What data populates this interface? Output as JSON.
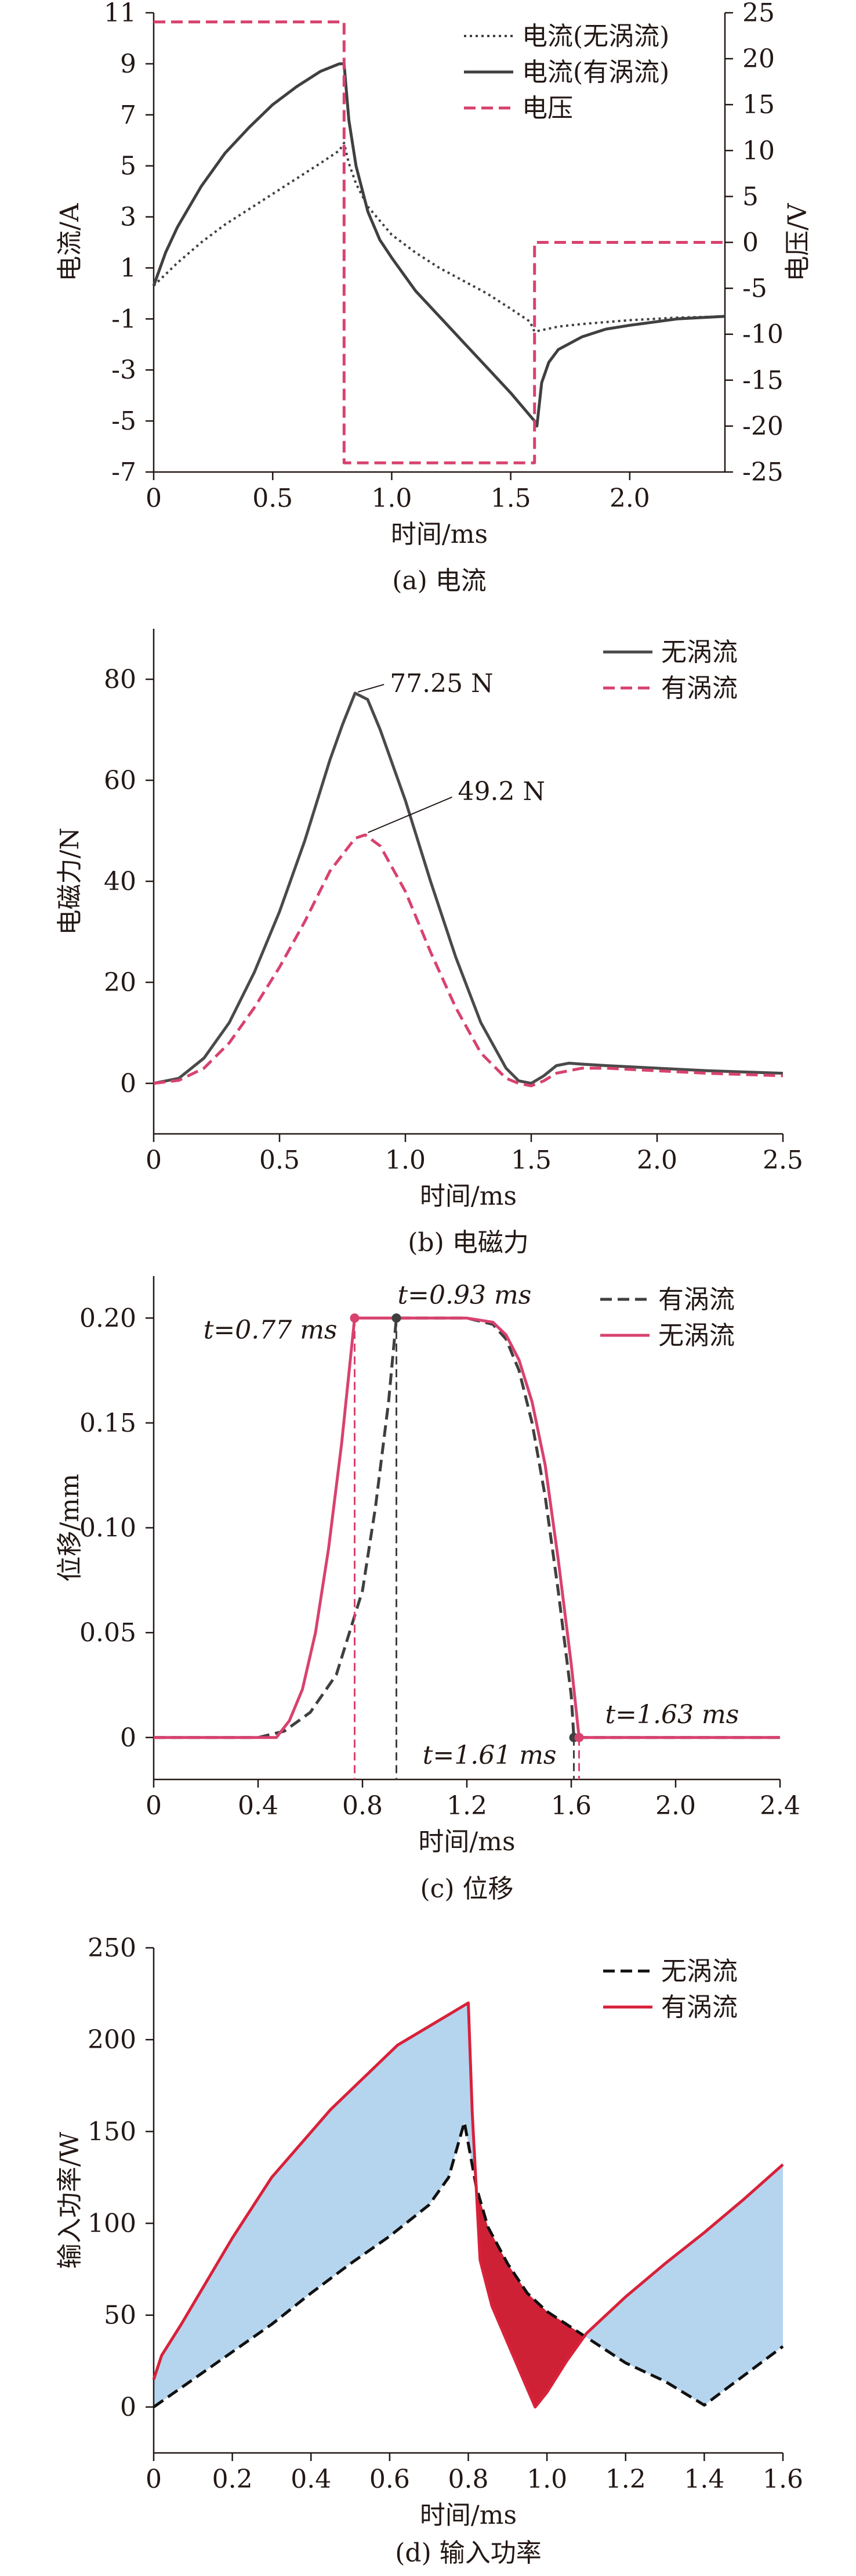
{
  "chart_data": [
    {
      "type": "line",
      "caption": "(a) 电流",
      "xlabel": "时间/ms",
      "ylabel": "电流/A",
      "y2label": "电压/V",
      "xlim": [
        0,
        2.4
      ],
      "ylim": [
        -7,
        11
      ],
      "y2lim": [
        -25,
        25
      ],
      "xticks": [
        0,
        0.5,
        1.0,
        1.5,
        2.0
      ],
      "xtick_labels": [
        "0",
        "0.5",
        "1.0",
        "1.5",
        "2.0"
      ],
      "yticks": [
        11,
        9,
        7,
        5,
        3,
        1,
        -1,
        -3,
        -5,
        -7
      ],
      "y2ticks": [
        25,
        20,
        15,
        10,
        5,
        0,
        -5,
        -10,
        -15,
        -20,
        -25
      ],
      "legend_position": "top-right",
      "series": [
        {
          "name": "电流(无涡流)",
          "axis": "left",
          "color": "#3f3f3f",
          "style": "dotted",
          "x": [
            0,
            0.1,
            0.2,
            0.3,
            0.4,
            0.5,
            0.6,
            0.7,
            0.78,
            0.8,
            0.82,
            0.85,
            0.9,
            1.0,
            1.1,
            1.2,
            1.3,
            1.4,
            1.5,
            1.58,
            1.6,
            1.65,
            1.7,
            1.8,
            2.0,
            2.2,
            2.4
          ],
          "y": [
            0.3,
            1.2,
            2.0,
            2.7,
            3.3,
            3.9,
            4.5,
            5.1,
            5.6,
            5.9,
            5.1,
            4.3,
            3.4,
            2.3,
            1.6,
            1.0,
            0.5,
            0.0,
            -0.6,
            -1.1,
            -1.5,
            -1.4,
            -1.3,
            -1.2,
            -1.05,
            -0.95,
            -0.9
          ]
        },
        {
          "name": "电流(有涡流)",
          "axis": "left",
          "color": "#404040",
          "style": "solid",
          "x": [
            0,
            0.05,
            0.1,
            0.2,
            0.3,
            0.4,
            0.5,
            0.6,
            0.7,
            0.78,
            0.8,
            0.82,
            0.85,
            0.9,
            0.95,
            1.0,
            1.1,
            1.2,
            1.3,
            1.4,
            1.5,
            1.6,
            1.61,
            1.63,
            1.66,
            1.7,
            1.8,
            1.9,
            2.0,
            2.2,
            2.4
          ],
          "y": [
            0.3,
            1.6,
            2.6,
            4.2,
            5.5,
            6.5,
            7.4,
            8.1,
            8.7,
            9.0,
            9.0,
            6.8,
            5.0,
            3.2,
            2.1,
            1.4,
            0.1,
            -0.9,
            -1.9,
            -2.9,
            -3.9,
            -5.0,
            -5.2,
            -3.5,
            -2.7,
            -2.2,
            -1.7,
            -1.4,
            -1.25,
            -1.0,
            -0.9
          ]
        },
        {
          "name": "电压",
          "axis": "right",
          "color": "#d8426e",
          "style": "dashed",
          "x": [
            0,
            0.8,
            0.8,
            1.6,
            1.6,
            2.4
          ],
          "y": [
            24,
            24,
            -24,
            -24,
            0,
            0
          ]
        }
      ]
    },
    {
      "type": "line",
      "caption": "(b) 电磁力",
      "xlabel": "时间/ms",
      "ylabel": "电磁力/N",
      "xlim": [
        0,
        2.5
      ],
      "ylim": [
        -10,
        90
      ],
      "xticks": [
        0,
        0.5,
        1.0,
        1.5,
        2.0,
        2.5
      ],
      "xtick_labels": [
        "0",
        "0.5",
        "1.0",
        "1.5",
        "2.0",
        "2.5"
      ],
      "yticks": [
        0,
        20,
        40,
        60,
        80
      ],
      "legend_position": "top-right",
      "annotations": [
        {
          "text": "77.25 N",
          "x": 0.8,
          "y": 77.25
        },
        {
          "text": "49.2 N",
          "x": 0.84,
          "y": 49.2
        }
      ],
      "series": [
        {
          "name": "无涡流",
          "color": "#4a4a4a",
          "style": "solid",
          "x": [
            0,
            0.1,
            0.2,
            0.3,
            0.4,
            0.5,
            0.6,
            0.7,
            0.75,
            0.8,
            0.85,
            0.9,
            1.0,
            1.1,
            1.2,
            1.3,
            1.4,
            1.45,
            1.5,
            1.55,
            1.6,
            1.65,
            1.7,
            1.8,
            2.0,
            2.2,
            2.5
          ],
          "y": [
            0,
            1,
            5,
            12,
            22,
            34,
            48,
            64,
            71,
            77.25,
            76,
            70,
            56,
            40,
            25,
            12,
            3,
            0.5,
            0,
            1.5,
            3.5,
            4,
            3.8,
            3.5,
            3,
            2.5,
            2
          ]
        },
        {
          "name": "有涡流",
          "color": "#d8426e",
          "style": "dashed",
          "x": [
            0,
            0.1,
            0.2,
            0.3,
            0.4,
            0.5,
            0.6,
            0.7,
            0.8,
            0.84,
            0.9,
            1.0,
            1.1,
            1.2,
            1.3,
            1.4,
            1.45,
            1.5,
            1.55,
            1.6,
            1.7,
            1.8,
            2.0,
            2.2,
            2.5
          ],
          "y": [
            0,
            0.6,
            3,
            8,
            15,
            23,
            32,
            42,
            48.5,
            49.2,
            47,
            38,
            26,
            15,
            6,
            1,
            0,
            -0.5,
            0.5,
            2,
            3,
            3,
            2.5,
            2,
            1.5
          ]
        }
      ]
    },
    {
      "type": "line",
      "caption": "(c) 位移",
      "xlabel": "时间/ms",
      "ylabel": "位移/mm",
      "xlim": [
        0,
        2.4
      ],
      "ylim": [
        -0.02,
        0.22
      ],
      "xticks": [
        0,
        0.4,
        0.8,
        1.2,
        1.6,
        2.0,
        2.4
      ],
      "xtick_labels": [
        "0",
        "0.4",
        "0.8",
        "1.2",
        "1.6",
        "2.0",
        "2.4"
      ],
      "yticks": [
        0,
        0.05,
        0.1,
        0.15,
        0.2
      ],
      "ytick_labels": [
        "0",
        "0.05",
        "0.10",
        "0.15",
        "0.20"
      ],
      "legend_position": "top-right",
      "annotations": [
        {
          "text": "t=0.77 ms",
          "x": 0.77,
          "y": 0.2
        },
        {
          "text": "t=0.93 ms",
          "x": 0.93,
          "y": 0.2
        },
        {
          "text": "t=1.61 ms",
          "x": 1.61,
          "y": 0
        },
        {
          "text": "t=1.63 ms",
          "x": 1.63,
          "y": 0
        }
      ],
      "series": [
        {
          "name": "有涡流",
          "color": "#3f3f3f",
          "style": "dashed",
          "x": [
            0,
            0.4,
            0.5,
            0.6,
            0.7,
            0.8,
            0.85,
            0.9,
            0.93,
            1.0,
            1.2,
            1.3,
            1.35,
            1.4,
            1.45,
            1.5,
            1.55,
            1.6,
            1.61,
            2.4
          ],
          "y": [
            0,
            0,
            0.003,
            0.012,
            0.03,
            0.07,
            0.11,
            0.16,
            0.2,
            0.2,
            0.2,
            0.197,
            0.19,
            0.175,
            0.15,
            0.115,
            0.07,
            0.02,
            0,
            0
          ]
        },
        {
          "name": "无涡流",
          "color": "#d8426e",
          "style": "solid",
          "x": [
            0,
            0.47,
            0.52,
            0.57,
            0.62,
            0.67,
            0.72,
            0.77,
            1.0,
            1.2,
            1.3,
            1.35,
            1.4,
            1.45,
            1.5,
            1.55,
            1.6,
            1.63,
            2.4
          ],
          "y": [
            0,
            0,
            0.008,
            0.023,
            0.05,
            0.09,
            0.14,
            0.2,
            0.2,
            0.2,
            0.198,
            0.192,
            0.18,
            0.16,
            0.13,
            0.085,
            0.035,
            0,
            0
          ]
        }
      ]
    },
    {
      "type": "area",
      "caption": "(d) 输入功率",
      "xlabel": "时间/ms",
      "ylabel": "输入功率/W",
      "xlim": [
        0,
        1.6
      ],
      "ylim": [
        -25,
        250
      ],
      "xticks": [
        0,
        0.2,
        0.4,
        0.6,
        0.8,
        1.0,
        1.2,
        1.4,
        1.6
      ],
      "xtick_labels": [
        "0",
        "0.2",
        "0.4",
        "0.6",
        "0.8",
        "1.0",
        "1.2",
        "1.4",
        "1.6"
      ],
      "yticks": [
        0,
        50,
        100,
        150,
        200,
        250
      ],
      "legend_position": "top-right",
      "fill_colors": {
        "positive": "#b5d5ef",
        "negative": "#cf2136"
      },
      "series": [
        {
          "name": "无涡流",
          "color": "#111111",
          "style": "dashed",
          "x": [
            0,
            0.1,
            0.2,
            0.3,
            0.4,
            0.5,
            0.6,
            0.7,
            0.75,
            0.79,
            0.82,
            0.85,
            0.9,
            0.95,
            1.0,
            1.1,
            1.2,
            1.3,
            1.4,
            1.5,
            1.6
          ],
          "y": [
            0,
            15,
            30,
            45,
            62,
            78,
            93,
            110,
            125,
            155,
            120,
            98,
            78,
            62,
            52,
            38,
            24,
            14,
            1,
            17,
            33
          ]
        },
        {
          "name": "有涡流",
          "color": "#d8213a",
          "style": "solid",
          "x": [
            0,
            0.02,
            0.07,
            0.2,
            0.3,
            0.45,
            0.62,
            0.8,
            0.81,
            0.83,
            0.86,
            0.9,
            0.94,
            0.97,
            1.0,
            1.05,
            1.1,
            1.2,
            1.3,
            1.4,
            1.5,
            1.6
          ],
          "y": [
            15,
            28,
            45,
            92,
            125,
            162,
            197,
            220,
            160,
            80,
            55,
            35,
            15,
            0,
            8,
            25,
            40,
            60,
            78,
            95,
            113,
            132
          ]
        }
      ]
    }
  ]
}
